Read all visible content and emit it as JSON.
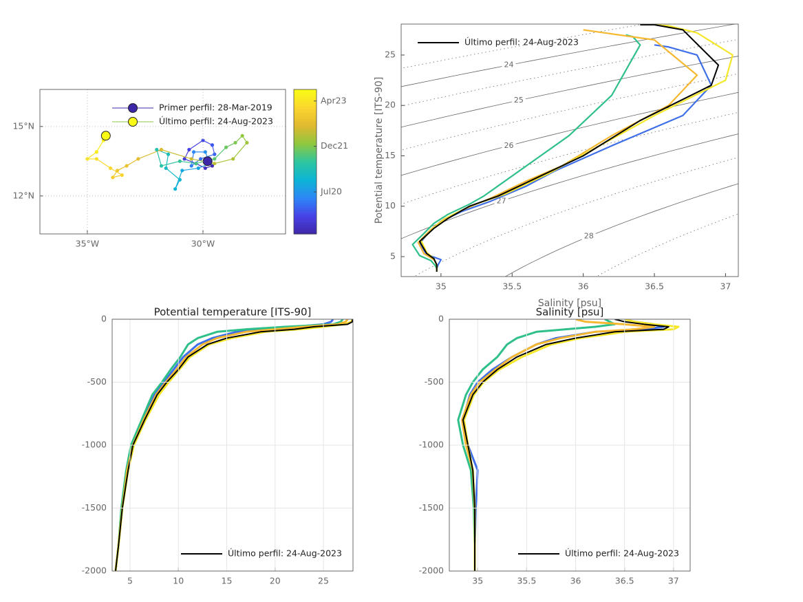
{
  "chart_data": [
    {
      "type": "track",
      "x": [
        -29.8,
        -29.6,
        -29.9,
        -30.3,
        -30.8,
        -30.6,
        -30.0,
        -29.6,
        -29.5,
        -30.1,
        -30.5,
        -30.4,
        -29.9,
        -29.7,
        -30.2,
        -30.9,
        -31.2,
        -31.0,
        -31.6,
        -31.5,
        -32.0,
        -31.8,
        -31.0,
        -30.3,
        -29.5,
        -29.0,
        -28.6,
        -28.3,
        -28.1,
        -28.7,
        -29.5,
        -30.5,
        -31.8,
        -32.8,
        -33.3,
        -33.7,
        -33.9,
        -33.5,
        -34.0,
        -34.6,
        -35.0,
        -34.6,
        -34.3,
        -34.2
      ],
      "y": [
        13.5,
        13.3,
        13.2,
        13.4,
        13.6,
        14.0,
        14.4,
        14.2,
        13.8,
        13.6,
        13.3,
        13.9,
        13.9,
        13.4,
        13.2,
        13.1,
        12.3,
        12.7,
        13.2,
        13.8,
        14.0,
        13.3,
        13.5,
        13.4,
        13.6,
        14.1,
        14.3,
        14.6,
        14.3,
        13.6,
        13.4,
        13.6,
        14.0,
        13.6,
        13.3,
        13.1,
        12.8,
        12.9,
        13.2,
        13.6,
        13.6,
        13.9,
        14.4,
        14.6
      ],
      "xlim": [
        -37.05,
        -26.43
      ],
      "ylim": [
        10.36,
        16.6
      ],
      "xticks": [
        {
          "value": -35,
          "label": "35°W"
        },
        {
          "value": -30,
          "label": "30°W"
        }
      ],
      "yticks": [
        {
          "value": 12,
          "label": "12°N"
        },
        {
          "value": 15,
          "label": "15°N"
        }
      ],
      "grid": true,
      "legend_position": "north",
      "legend": [
        {
          "name": "Primer perfil: 28-Mar-2019",
          "color": "#3e26a8",
          "marker_color": "#3e26a8"
        },
        {
          "name": "Último perfil: 24-Aug-2023",
          "color": "#8dc83f",
          "marker_color": "#f9fb15"
        }
      ],
      "colorbar": {
        "clim": [
          2019.27,
          2023.64
        ],
        "ticks": [
          {
            "value": 2020.54,
            "label": "Jul20"
          },
          {
            "value": 2021.92,
            "label": "Dec21"
          },
          {
            "value": 2023.29,
            "label": "Apr23"
          }
        ],
        "colormap": [
          "#3e26a8",
          "#4742e7",
          "#2e87f7",
          "#0cb4d6",
          "#2ec5a0",
          "#8dc83f",
          "#e0b930",
          "#fbd62e",
          "#f9fb15"
        ]
      }
    },
    {
      "type": "ts",
      "xlabel": "Salinity [psu]",
      "ylabel": "Potential temperature [ITS-90]",
      "xlim": [
        34.72,
        37.09
      ],
      "ylim": [
        3.02,
        28.07
      ],
      "xticks": [
        35,
        35.5,
        36,
        36.5,
        37
      ],
      "yticks": [
        5,
        10,
        15,
        20,
        25
      ],
      "contour_levels": [
        24,
        25,
        26,
        27,
        28
      ],
      "minor_levels": [
        23.5,
        24.5,
        25.5,
        26.5,
        27.5,
        28.5
      ],
      "legend_position": "northwest",
      "series": [
        {
          "color": "#3f6fe8",
          "x": [
            36.5,
            36.6,
            36.8,
            36.9,
            36.7,
            36.2,
            35.8,
            35.6,
            35.35,
            35.15,
            35.0,
            34.92,
            34.85,
            34.9,
            35.0,
            34.98,
            34.97,
            34.97
          ],
          "values": [
            26,
            25.8,
            25,
            22,
            19,
            16,
            13.5,
            12,
            10.5,
            9.5,
            8.5,
            7.5,
            6.3,
            5.2,
            4.7,
            4.2,
            3.8,
            3.5
          ]
        },
        {
          "color": "#2fc08a",
          "x": [
            36.3,
            36.35,
            36.4,
            36.2,
            35.9,
            35.6,
            35.4,
            35.3,
            35.2,
            35.05,
            34.95,
            34.88,
            34.8,
            34.85,
            34.93,
            34.96,
            34.97,
            34.97
          ],
          "values": [
            27,
            26.8,
            26,
            21,
            17,
            14,
            12,
            11,
            10.2,
            9.2,
            8.3,
            7.3,
            6.2,
            5.1,
            4.6,
            4.1,
            3.8,
            3.5
          ]
        },
        {
          "color": "#f5b830",
          "x": [
            36.0,
            36.1,
            36.5,
            36.8,
            36.6,
            36.2,
            35.85,
            35.6,
            35.35,
            35.18,
            35.02,
            34.93,
            34.84,
            34.88,
            34.95,
            34.97,
            34.97,
            34.97
          ],
          "values": [
            27.5,
            27.3,
            26.5,
            23,
            20,
            17,
            14,
            12.5,
            10.8,
            9.8,
            8.7,
            7.7,
            6.4,
            5.3,
            4.7,
            4.2,
            3.8,
            3.5
          ]
        },
        {
          "color": "#f5e72a",
          "x": [
            36.5,
            36.6,
            36.8,
            37.05,
            37.0,
            36.5,
            36.05,
            35.75,
            35.45,
            35.22,
            35.06,
            34.96,
            34.86,
            34.9,
            34.95,
            34.97,
            34.97,
            34.97
          ],
          "values": [
            28,
            27.9,
            27.2,
            25,
            22.5,
            19,
            15.5,
            13.2,
            11.2,
            10.1,
            9,
            8,
            6.6,
            5.4,
            4.8,
            4.2,
            3.8,
            3.5
          ]
        },
        {
          "name": "Último perfil: 24-Aug-2023",
          "color": "#000000",
          "x": [
            36.4,
            36.5,
            36.7,
            36.95,
            36.9,
            36.4,
            36.0,
            35.7,
            35.4,
            35.2,
            35.05,
            34.95,
            34.85,
            34.9,
            34.95,
            34.97,
            34.97,
            34.97
          ],
          "values": [
            28,
            28,
            27.5,
            24,
            22,
            18.5,
            15,
            13,
            11,
            10,
            8.8,
            7.8,
            6.5,
            5.3,
            4.8,
            4.2,
            3.8,
            3.5
          ]
        }
      ]
    },
    {
      "type": "profile",
      "title": "Potential temperature [ITS-90]",
      "y": [
        0,
        -20,
        -40,
        -60,
        -80,
        -100,
        -150,
        -200,
        -300,
        -400,
        -500,
        -600,
        -800,
        -1000,
        -1200,
        -1500,
        -1800,
        -2000
      ],
      "xlim": [
        3.15,
        28.06
      ],
      "ylim": [
        -2000,
        0
      ],
      "xticks": [
        5,
        10,
        15,
        20,
        25
      ],
      "yticks": [
        -2000,
        -1500,
        -1000,
        -500,
        0
      ],
      "grid": true,
      "legend_position": "southeast",
      "series": [
        {
          "color": "#3f6fe8",
          "values": [
            26,
            25.8,
            25,
            22,
            19,
            16,
            13.5,
            12,
            10.5,
            9.5,
            8.5,
            7.5,
            6.3,
            5.2,
            4.7,
            4.2,
            3.8,
            3.5
          ]
        },
        {
          "color": "#2fc08a",
          "values": [
            27,
            26.8,
            26,
            21,
            17,
            14,
            12,
            11,
            10.2,
            9.2,
            8.3,
            7.3,
            6.2,
            5.1,
            4.6,
            4.1,
            3.8,
            3.5
          ]
        },
        {
          "color": "#f5b830",
          "values": [
            27.5,
            27.3,
            26.5,
            23,
            20,
            17,
            14,
            12.5,
            10.8,
            9.8,
            8.7,
            7.7,
            6.4,
            5.3,
            4.7,
            4.2,
            3.8,
            3.5
          ]
        },
        {
          "color": "#f5e72a",
          "values": [
            28,
            27.9,
            27.2,
            25,
            22.5,
            19,
            15.5,
            13.2,
            11.2,
            10.1,
            9,
            8,
            6.6,
            5.4,
            4.8,
            4.2,
            3.8,
            3.5
          ]
        },
        {
          "name": "Último perfil: 24-Aug-2023",
          "color": "#000000",
          "values": [
            28,
            28,
            27.5,
            24,
            22,
            18.5,
            15,
            13,
            11,
            10,
            8.8,
            7.8,
            6.5,
            5.3,
            4.8,
            4.2,
            3.8,
            3.5
          ]
        }
      ]
    },
    {
      "type": "profile",
      "title": "Salinity [psu]",
      "y": [
        0,
        -20,
        -40,
        -60,
        -80,
        -100,
        -150,
        -200,
        -300,
        -400,
        -500,
        -600,
        -800,
        -1000,
        -1200,
        -1500,
        -1800,
        -2000
      ],
      "xlim": [
        34.71,
        37.17
      ],
      "ylim": [
        -2000,
        0
      ],
      "xticks": [
        35,
        35.5,
        36,
        36.5,
        37
      ],
      "yticks": [
        -2000,
        -1500,
        -1000,
        -500,
        0
      ],
      "grid": true,
      "legend_position": "southeast",
      "series": [
        {
          "color": "#3f6fe8",
          "values": [
            36.5,
            36.6,
            36.8,
            36.9,
            36.7,
            36.2,
            35.8,
            35.6,
            35.35,
            35.15,
            35.0,
            34.92,
            34.85,
            34.9,
            35.0,
            34.98,
            34.97,
            34.97
          ]
        },
        {
          "color": "#2fc08a",
          "values": [
            36.3,
            36.35,
            36.4,
            36.2,
            35.9,
            35.6,
            35.4,
            35.3,
            35.2,
            35.05,
            34.95,
            34.88,
            34.8,
            34.85,
            34.93,
            34.96,
            34.97,
            34.97
          ]
        },
        {
          "color": "#f5b830",
          "values": [
            36.0,
            36.1,
            36.5,
            36.8,
            36.6,
            36.2,
            35.85,
            35.6,
            35.35,
            35.18,
            35.02,
            34.93,
            34.84,
            34.88,
            34.95,
            34.97,
            34.97,
            34.97
          ]
        },
        {
          "color": "#f5e72a",
          "values": [
            36.5,
            36.6,
            36.8,
            37.05,
            37.0,
            36.5,
            36.05,
            35.75,
            35.45,
            35.22,
            35.06,
            34.96,
            34.86,
            34.9,
            34.95,
            34.97,
            34.97,
            34.97
          ]
        },
        {
          "name": "Último perfil: 24-Aug-2023",
          "color": "#000000",
          "values": [
            36.4,
            36.5,
            36.7,
            36.95,
            36.9,
            36.4,
            36.0,
            35.7,
            35.4,
            35.2,
            35.05,
            34.95,
            34.85,
            34.9,
            34.95,
            34.97,
            34.97,
            34.97
          ]
        }
      ]
    }
  ]
}
